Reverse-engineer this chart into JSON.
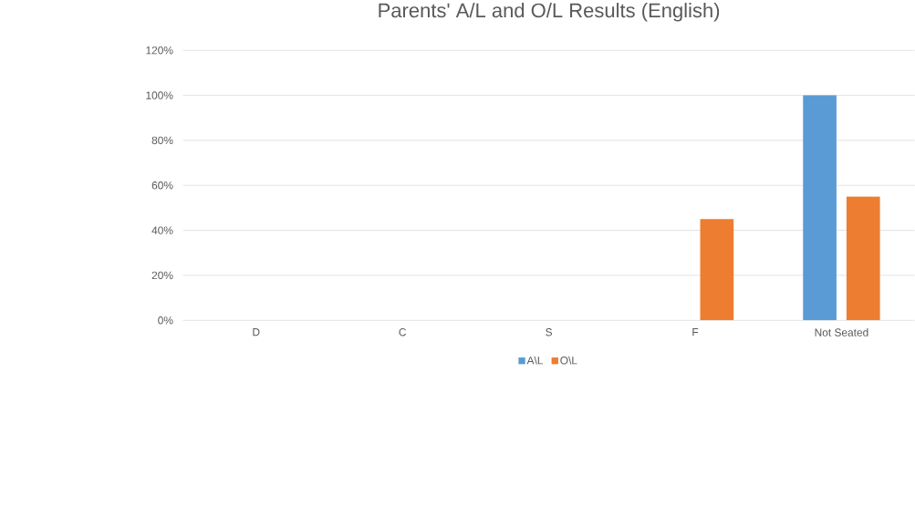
{
  "chart_data": {
    "type": "bar",
    "title": "Parents' A/L and O/L Results (English)",
    "categories": [
      "D",
      "C",
      "S",
      "F",
      "Not Seated"
    ],
    "series": [
      {
        "name": "A\\L",
        "color": "#5b9bd5",
        "values": [
          0,
          0,
          0,
          0,
          100
        ]
      },
      {
        "name": "O\\L",
        "color": "#ed7d31",
        "values": [
          0,
          0,
          0,
          45,
          55
        ]
      }
    ],
    "ylim": [
      0,
      120
    ],
    "yticks": [
      {
        "value": 0,
        "label": "0%"
      },
      {
        "value": 20,
        "label": "20%"
      },
      {
        "value": 40,
        "label": "40%"
      },
      {
        "value": 60,
        "label": "60%"
      },
      {
        "value": 80,
        "label": "80%"
      },
      {
        "value": 100,
        "label": "100%"
      },
      {
        "value": 120,
        "label": "120%"
      }
    ],
    "grid": "y",
    "legend": "bottom"
  }
}
